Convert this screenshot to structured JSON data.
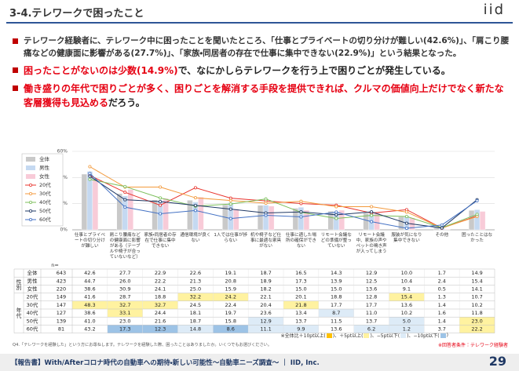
{
  "header": {
    "title": "3-4.テレワークで困ったこと",
    "logo": "iid"
  },
  "bullets": [
    {
      "segments": [
        {
          "text": "テレワーク経験者に、テレワーク中に困ったことを聞いたところ、「仕事とプライベートの切り分けが難しい(42.6%)」、「肩こり腰痛などの健康面に影響がある(27.7%)」、「家族・同居者の存在で仕事に集中できない(22.9%)」という結果となった。"
        }
      ]
    },
    {
      "segments": [
        {
          "text": "困ったことがないのは少数(14.9%)",
          "color": "#e60012"
        },
        {
          "text": "で、なにかしらテレワークを行う上で困りごとが発生している。"
        }
      ]
    },
    {
      "segments": [
        {
          "text": "働き盛りの年代で困りごとが多く、困りごとを解消する手段を提供できれば、クルマの価値向上だけでなく新たな客層獲得も見込める",
          "color": "#e60012"
        },
        {
          "text": "だろう。"
        }
      ]
    }
  ],
  "chart_data": {
    "type": "bar",
    "categories": [
      "仕事とプライベートの切り分けが難しい",
      "肩こり腰痛などの健康面に影響がある（テーブルや椅子が合っていないなど）",
      "家族・同居者の存在で仕事に集中できない",
      "通信環境が良くない",
      "1人では仕事が捗らない",
      "机や椅子など仕事に最適な家具がない",
      "仕事に適した場所の確保ができない",
      "リモート会議などの準備が整っていない",
      "リモート会議中、家族の声やペットの鳴き声が入ってしまう",
      "服装が気になり集中できない",
      "その他",
      "困ったことはなかった"
    ],
    "ylim": [
      0,
      60
    ],
    "yticks": [
      {
        "value": 0,
        "label": "0%"
      },
      {
        "value": 20,
        "label": "20%"
      },
      {
        "value": 40,
        "label": "40%"
      },
      {
        "value": 60,
        "label": "60%"
      }
    ],
    "grid": true,
    "n_label": "n=",
    "n": [
      643,
      423,
      220,
      149,
      147,
      127,
      139,
      81
    ],
    "row_groups": [
      "性別",
      "年代"
    ],
    "series": [
      {
        "name": "全体",
        "type": "bar",
        "color": "#c9c9c9",
        "values": [
          42.6,
          27.7,
          22.9,
          22.6,
          19.1,
          18.7,
          16.5,
          14.3,
          12.9,
          10.0,
          1.7,
          14.9
        ],
        "value_labels": [
          "42.6",
          "27.7",
          "22.9",
          "22.6",
          "19.1",
          "18.7",
          "16.5",
          "14.3",
          "12.9",
          "10.0",
          "1.7",
          "14.9"
        ]
      },
      {
        "name": "男性",
        "type": "bar",
        "color": "#c5d9f1",
        "values": [
          44.7,
          26.0,
          22.2,
          21.3,
          20.8,
          18.9,
          17.3,
          13.9,
          12.5,
          10.4,
          2.4,
          15.4
        ],
        "value_labels": [
          "44.7",
          "26.0",
          "22.2",
          "21.3",
          "20.8",
          "18.9",
          "17.3",
          "13.9",
          "12.5",
          "10.4",
          "2.4",
          "15.4"
        ]
      },
      {
        "name": "女性",
        "type": "bar",
        "color": "#f8cbd8",
        "values": [
          38.6,
          30.9,
          24.1,
          25.0,
          15.9,
          18.2,
          15.0,
          15.0,
          13.6,
          9.1,
          0.5,
          14.1
        ],
        "value_labels": [
          "38.6",
          "30.9",
          "24.1",
          "25.0",
          "15.9",
          "18.2",
          "15.0",
          "15.0",
          "13.6",
          "9.1",
          "0.5",
          "14.1"
        ]
      },
      {
        "name": "20代",
        "type": "line",
        "color": "#e8352e",
        "values": [
          41.6,
          28.7,
          18.8,
          32.2,
          24.2,
          22.1,
          20.1,
          18.8,
          12.8,
          15.4,
          1.3,
          10.7
        ],
        "value_labels": [
          "41.6",
          "28.7",
          "18.8",
          "32.2",
          "24.2",
          "22.1",
          "20.1",
          "18.8",
          "12.8",
          "15.4",
          "1.3",
          "10.7"
        ]
      },
      {
        "name": "30代",
        "type": "line",
        "color": "#f39a3c",
        "values": [
          48.3,
          32.7,
          32.7,
          24.5,
          22.4,
          20.4,
          21.8,
          17.7,
          17.7,
          13.6,
          1.4,
          10.2
        ],
        "value_labels": [
          "48.3",
          "32.7",
          "32.7",
          "24.5",
          "22.4",
          "20.4",
          "21.8",
          "17.7",
          "17.7",
          "13.6",
          "1.4",
          "10.2"
        ]
      },
      {
        "name": "40代",
        "type": "line",
        "color": "#7cbf5b",
        "values": [
          38.6,
          33.1,
          24.4,
          18.1,
          19.7,
          23.6,
          13.4,
          8.7,
          11.0,
          10.2,
          1.6,
          11.8
        ],
        "value_labels": [
          "38.6",
          "33.1",
          "24.4",
          "18.1",
          "19.7",
          "23.6",
          "13.4",
          "8.7",
          "11.0",
          "10.2",
          "1.6",
          "11.8"
        ]
      },
      {
        "name": "50代",
        "type": "line",
        "color": "#1f3864",
        "values": [
          41.0,
          23.0,
          21.6,
          18.7,
          15.8,
          12.9,
          13.7,
          11.5,
          13.7,
          5.0,
          1.4,
          23.0
        ],
        "value_labels": [
          "41.0",
          "23.0",
          "21.6",
          "18.7",
          "15.8",
          "12.9",
          "13.7",
          "11.5",
          "13.7",
          "5.0",
          "1.4",
          "23.0"
        ]
      },
      {
        "name": "60代",
        "type": "line",
        "color": "#4472c4",
        "values": [
          43.2,
          17.3,
          12.3,
          14.8,
          8.6,
          11.1,
          9.9,
          13.6,
          6.2,
          1.2,
          3.7,
          22.2
        ],
        "value_labels": [
          "43.2",
          "17.3",
          "12.3",
          "14.8",
          "8.6",
          "11.1",
          "9.9",
          "13.6",
          "6.2",
          "1.2",
          "3.7",
          "22.2"
        ]
      }
    ],
    "highlight_legend": {
      "prefix": "※全体比",
      "items": [
        {
          "label": "＋10pt以上(",
          "close": ")、",
          "color": "#ffc000",
          "threshold": 10
        },
        {
          "label": "＋5pt以上(",
          "close": ")、",
          "color": "#fff2a0",
          "threshold": 5
        },
        {
          "label": "−5pt以下(",
          "close": ")、",
          "color": "#ddebf7",
          "threshold": -5
        },
        {
          "label": "−10pt以下(",
          "close": ")",
          "color": "#9dc3e6",
          "threshold": -10
        }
      ]
    },
    "question": "Q4.「テレワークを経験した」という方にお尋ねします。テレワークを経験した際、困ったことはありましたか。いくつでもお選びください。",
    "condition": "※回答者条件：テレワーク経験者"
  },
  "footer": {
    "text": "【報告書】With/Afterコロナ時代の自動車への期待・新しい可能性〜自動車ニーズ調査〜 ｜ IID, Inc.",
    "page": 29
  }
}
